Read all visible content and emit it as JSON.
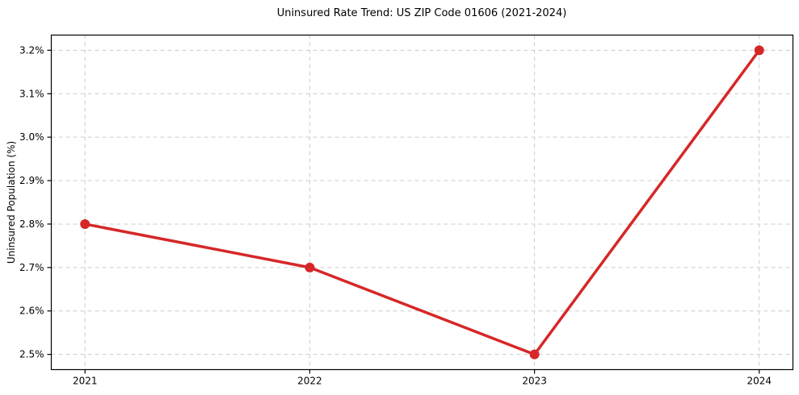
{
  "chart_data": {
    "type": "line",
    "title": "Uninsured Rate Trend: US ZIP Code 01606 (2021-2024)",
    "xlabel": "",
    "ylabel": "Uninsured Population (%)",
    "x": [
      2021,
      2022,
      2023,
      2024
    ],
    "values": [
      2.8,
      2.7,
      2.5,
      3.2
    ],
    "xticks": [
      2021,
      2022,
      2023,
      2024
    ],
    "xtick_labels": [
      "2021",
      "2022",
      "2023",
      "2024"
    ],
    "yticks": [
      2.5,
      2.6,
      2.7,
      2.8,
      2.9,
      3.0,
      3.1,
      3.2
    ],
    "ytick_labels": [
      "2.5%",
      "2.6%",
      "2.7%",
      "2.8%",
      "2.9%",
      "3.0%",
      "3.1%",
      "3.2%"
    ],
    "xlim": [
      2020.85,
      2024.15
    ],
    "ylim": [
      2.465,
      3.235
    ],
    "grid": true,
    "legend": false,
    "line_color": "#d62728",
    "grid_color": "#cccccc",
    "spine_color": "#000000",
    "background_color": "#ffffff"
  }
}
